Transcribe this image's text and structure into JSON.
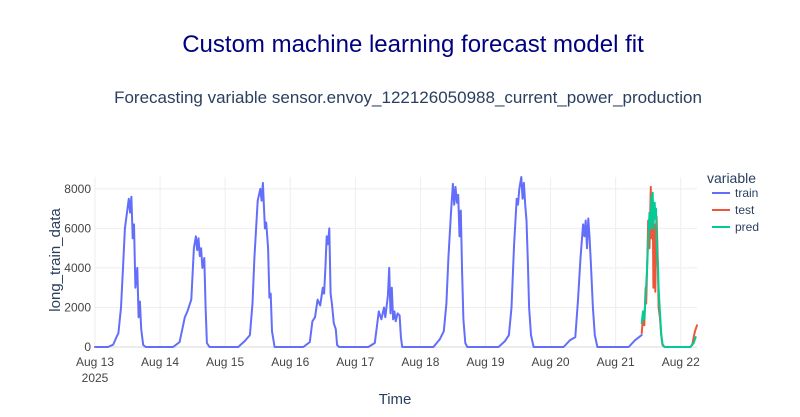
{
  "header": {
    "title": "Custom machine learning forecast model fit",
    "subtitle": "Forecasting variable sensor.envoy_122126050988_current_power_production"
  },
  "legend": {
    "title": "variable",
    "items": [
      {
        "label": "train",
        "color": "#636efa"
      },
      {
        "label": "test",
        "color": "#EF553B"
      },
      {
        "label": "pred",
        "color": "#00cc96"
      }
    ]
  },
  "colors": {
    "title": "#000080",
    "text": "#2a3f5f",
    "grid": "#eeeeee",
    "axis": "#444444"
  },
  "chart_data": {
    "type": "line",
    "xlabel": "Time",
    "ylabel": "long_train_data",
    "xlim_days": [
      13,
      22.25
    ],
    "ylim": [
      0,
      8600
    ],
    "yticks": [
      0,
      2000,
      4000,
      6000,
      8000
    ],
    "ytick_labels": [
      "0",
      "2000",
      "4000",
      "6000",
      "8000"
    ],
    "xtick_days": [
      13,
      14,
      15,
      16,
      17,
      18,
      19,
      20,
      21,
      22
    ],
    "xtick_labels": [
      "Aug 13",
      "Aug 14",
      "Aug 15",
      "Aug 16",
      "Aug 17",
      "Aug 18",
      "Aug 19",
      "Aug 20",
      "Aug 21",
      "Aug 22"
    ],
    "xtick_year": "2025",
    "series": [
      {
        "name": "train",
        "color": "#636efa",
        "points": [
          [
            13.0,
            0
          ],
          [
            13.2,
            0
          ],
          [
            13.28,
            120
          ],
          [
            13.33,
            500
          ],
          [
            13.36,
            700
          ],
          [
            13.4,
            2000
          ],
          [
            13.43,
            4000
          ],
          [
            13.46,
            6000
          ],
          [
            13.5,
            7000
          ],
          [
            13.52,
            7500
          ],
          [
            13.54,
            6800
          ],
          [
            13.56,
            7600
          ],
          [
            13.58,
            5500
          ],
          [
            13.6,
            6200
          ],
          [
            13.62,
            3000
          ],
          [
            13.65,
            4000
          ],
          [
            13.67,
            1500
          ],
          [
            13.69,
            2300
          ],
          [
            13.71,
            900
          ],
          [
            13.74,
            100
          ],
          [
            13.78,
            0
          ],
          [
            14.2,
            0
          ],
          [
            14.3,
            250
          ],
          [
            14.38,
            1500
          ],
          [
            14.42,
            1800
          ],
          [
            14.48,
            2400
          ],
          [
            14.52,
            5000
          ],
          [
            14.55,
            5600
          ],
          [
            14.57,
            4900
          ],
          [
            14.59,
            5500
          ],
          [
            14.61,
            4600
          ],
          [
            14.63,
            5000
          ],
          [
            14.65,
            4000
          ],
          [
            14.68,
            4500
          ],
          [
            14.7,
            2000
          ],
          [
            14.72,
            200
          ],
          [
            14.76,
            0
          ],
          [
            15.2,
            0
          ],
          [
            15.3,
            300
          ],
          [
            15.38,
            600
          ],
          [
            15.42,
            2200
          ],
          [
            15.45,
            4500
          ],
          [
            15.5,
            7400
          ],
          [
            15.54,
            8000
          ],
          [
            15.56,
            7400
          ],
          [
            15.58,
            8300
          ],
          [
            15.61,
            6000
          ],
          [
            15.63,
            6300
          ],
          [
            15.66,
            5000
          ],
          [
            15.68,
            2500
          ],
          [
            15.7,
            2700
          ],
          [
            15.72,
            800
          ],
          [
            15.76,
            0
          ],
          [
            16.2,
            0
          ],
          [
            16.3,
            250
          ],
          [
            16.34,
            1300
          ],
          [
            16.38,
            1500
          ],
          [
            16.42,
            2400
          ],
          [
            16.46,
            2100
          ],
          [
            16.5,
            3000
          ],
          [
            16.52,
            2700
          ],
          [
            16.54,
            4000
          ],
          [
            16.56,
            5600
          ],
          [
            16.58,
            5200
          ],
          [
            16.6,
            6000
          ],
          [
            16.62,
            2700
          ],
          [
            16.64,
            2200
          ],
          [
            16.67,
            1200
          ],
          [
            16.7,
            900
          ],
          [
            16.72,
            100
          ],
          [
            16.75,
            0
          ],
          [
            17.2,
            0
          ],
          [
            17.3,
            200
          ],
          [
            17.36,
            1800
          ],
          [
            17.4,
            1400
          ],
          [
            17.44,
            2000
          ],
          [
            17.46,
            1500
          ],
          [
            17.5,
            2600
          ],
          [
            17.52,
            4000
          ],
          [
            17.54,
            1700
          ],
          [
            17.56,
            3000
          ],
          [
            17.58,
            1400
          ],
          [
            17.6,
            1800
          ],
          [
            17.62,
            1300
          ],
          [
            17.65,
            1700
          ],
          [
            17.68,
            1600
          ],
          [
            17.7,
            500
          ],
          [
            17.72,
            0
          ],
          [
            18.2,
            0
          ],
          [
            18.3,
            400
          ],
          [
            18.36,
            800
          ],
          [
            18.4,
            2200
          ],
          [
            18.43,
            4500
          ],
          [
            18.47,
            6800
          ],
          [
            18.5,
            8250
          ],
          [
            18.52,
            7200
          ],
          [
            18.54,
            8100
          ],
          [
            18.56,
            7300
          ],
          [
            18.58,
            7700
          ],
          [
            18.6,
            5600
          ],
          [
            18.62,
            6900
          ],
          [
            18.64,
            3800
          ],
          [
            18.66,
            1400
          ],
          [
            18.69,
            200
          ],
          [
            18.72,
            0
          ],
          [
            19.2,
            0
          ],
          [
            19.3,
            300
          ],
          [
            19.36,
            600
          ],
          [
            19.4,
            2000
          ],
          [
            19.44,
            5200
          ],
          [
            19.48,
            7500
          ],
          [
            19.5,
            7200
          ],
          [
            19.52,
            8000
          ],
          [
            19.55,
            8600
          ],
          [
            19.57,
            7500
          ],
          [
            19.59,
            8300
          ],
          [
            19.61,
            7200
          ],
          [
            19.63,
            6400
          ],
          [
            19.65,
            4400
          ],
          [
            19.67,
            2000
          ],
          [
            19.7,
            600
          ],
          [
            19.74,
            0
          ],
          [
            20.2,
            0
          ],
          [
            20.3,
            350
          ],
          [
            20.38,
            500
          ],
          [
            20.42,
            2300
          ],
          [
            20.46,
            4500
          ],
          [
            20.5,
            6200
          ],
          [
            20.52,
            5600
          ],
          [
            20.54,
            6400
          ],
          [
            20.56,
            5000
          ],
          [
            20.58,
            6500
          ],
          [
            20.6,
            5500
          ],
          [
            20.62,
            4200
          ],
          [
            20.65,
            2000
          ],
          [
            20.68,
            600
          ],
          [
            20.72,
            0
          ],
          [
            21.2,
            0
          ],
          [
            21.3,
            350
          ],
          [
            21.36,
            500
          ],
          [
            21.4,
            600
          ]
        ]
      },
      {
        "name": "test",
        "color": "#EF553B",
        "points": [
          [
            21.4,
            700
          ],
          [
            21.42,
            1500
          ],
          [
            21.44,
            1100
          ],
          [
            21.46,
            3000
          ],
          [
            21.47,
            2200
          ],
          [
            21.49,
            4800
          ],
          [
            21.5,
            6400
          ],
          [
            21.52,
            5000
          ],
          [
            21.54,
            8100
          ],
          [
            21.55,
            5500
          ],
          [
            21.57,
            7400
          ],
          [
            21.58,
            3000
          ],
          [
            21.6,
            6200
          ],
          [
            21.61,
            2800
          ],
          [
            21.63,
            6600
          ],
          [
            21.65,
            4000
          ],
          [
            21.66,
            2000
          ],
          [
            21.68,
            1500
          ],
          [
            21.7,
            600
          ],
          [
            21.72,
            100
          ],
          [
            21.75,
            0
          ],
          [
            22.15,
            0
          ],
          [
            22.18,
            150
          ],
          [
            22.2,
            500
          ],
          [
            22.22,
            800
          ],
          [
            22.25,
            1100
          ]
        ]
      },
      {
        "name": "pred",
        "color": "#00cc96",
        "points": [
          [
            21.4,
            1200
          ],
          [
            21.42,
            1800
          ],
          [
            21.44,
            1400
          ],
          [
            21.46,
            2600
          ],
          [
            21.48,
            3800
          ],
          [
            21.5,
            5400
          ],
          [
            21.52,
            6800
          ],
          [
            21.54,
            6000
          ],
          [
            21.55,
            7600
          ],
          [
            21.56,
            6900
          ],
          [
            21.57,
            7800
          ],
          [
            21.58,
            6000
          ],
          [
            21.6,
            7300
          ],
          [
            21.61,
            6500
          ],
          [
            21.62,
            7000
          ],
          [
            21.63,
            5500
          ],
          [
            21.65,
            4000
          ],
          [
            21.66,
            3000
          ],
          [
            21.68,
            1800
          ],
          [
            21.7,
            700
          ],
          [
            21.72,
            150
          ],
          [
            21.75,
            0
          ],
          [
            22.15,
            0
          ],
          [
            22.2,
            200
          ],
          [
            22.23,
            500
          ]
        ]
      }
    ]
  }
}
